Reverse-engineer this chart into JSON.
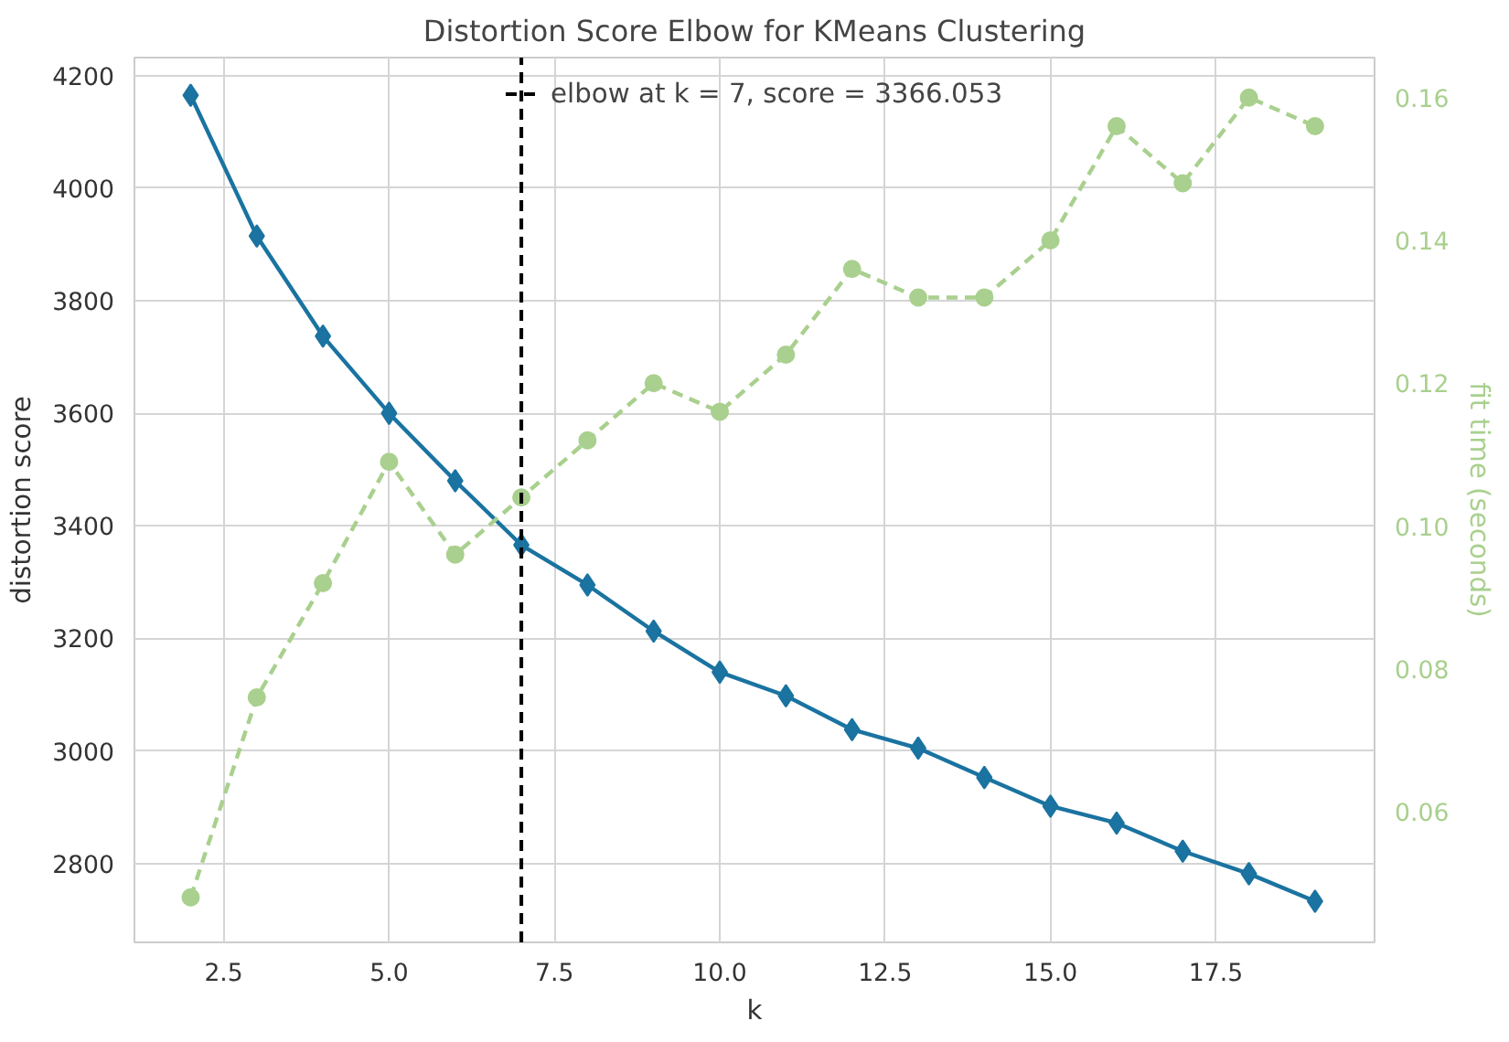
{
  "chart_data": {
    "type": "line",
    "title": "Distortion Score Elbow for KMeans Clustering",
    "xlabel": "k",
    "ylabel": "distortion score",
    "y2label": "fit time (seconds)",
    "x": [
      2,
      3,
      4,
      5,
      6,
      7,
      8,
      9,
      10,
      11,
      12,
      13,
      14,
      15,
      16,
      17,
      18,
      19
    ],
    "series": [
      {
        "color": "#1a73a0",
        "marker": "diamond",
        "line_style": "solid",
        "values": [
          4165,
          3915,
          3737,
          3600,
          3480,
          3366,
          3295,
          3213,
          3140,
          3098,
          3038,
          3005,
          2953,
          2902,
          2872,
          2822,
          2782,
          2733
        ]
      },
      {
        "color": "#a9d08e",
        "marker": "circle",
        "line_style": "dashed",
        "axis": "y2",
        "values": [
          0.048,
          0.076,
          0.092,
          0.109,
          0.096,
          0.104,
          0.112,
          0.12,
          0.116,
          0.124,
          0.136,
          0.132,
          0.132,
          0.14,
          0.156,
          0.148,
          0.16,
          0.156
        ]
      }
    ],
    "xlim": [
      1.15,
      19.9
    ],
    "xticks": [
      {
        "value": 2.5,
        "label": "2.5"
      },
      {
        "value": 5,
        "label": "5.0"
      },
      {
        "value": 7.5,
        "label": "7.5"
      },
      {
        "value": 10,
        "label": "10.0"
      },
      {
        "value": 12.5,
        "label": "12.5"
      },
      {
        "value": 15,
        "label": "15.0"
      },
      {
        "value": 17.5,
        "label": "17.5"
      }
    ],
    "ylim": [
      2660,
      4232
    ],
    "yticks": [
      2800,
      3000,
      3200,
      3400,
      3600,
      3800,
      4000,
      4200
    ],
    "y2lim": [
      0.0417,
      0.1656
    ],
    "y2ticks": [
      {
        "value": 0.06,
        "label": "0.06"
      },
      {
        "value": 0.08,
        "label": "0.08"
      },
      {
        "value": 0.1,
        "label": "0.10"
      },
      {
        "value": 0.12,
        "label": "0.12"
      },
      {
        "value": 0.14,
        "label": "0.14"
      },
      {
        "value": 0.16,
        "label": "0.16"
      }
    ],
    "ref_lines": [
      {
        "axis": "x",
        "value": 7,
        "label": "elbow at k = 7, score = 3366.053",
        "color": "#000000",
        "line_style": "dashed"
      }
    ],
    "grid": true,
    "legend": "top center"
  }
}
